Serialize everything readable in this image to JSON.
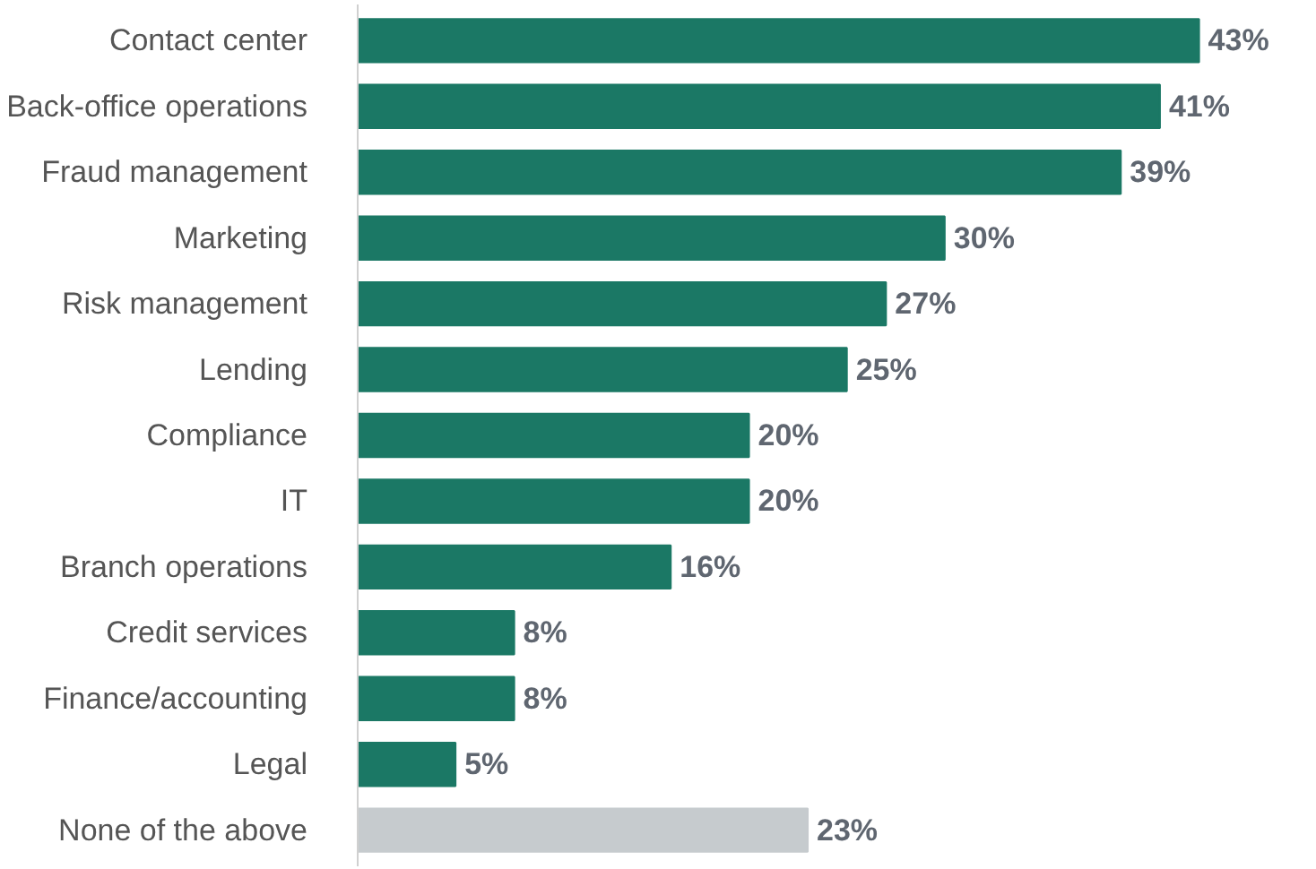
{
  "chart_data": {
    "type": "bar",
    "orientation": "horizontal",
    "categories": [
      "Contact center",
      "Back-office operations",
      "Fraud management",
      "Marketing",
      "Risk management",
      "Lending",
      "Compliance",
      "IT",
      "Branch operations",
      "Credit services",
      "Finance/accounting",
      "Legal",
      "None of the above"
    ],
    "values": [
      43,
      41,
      39,
      30,
      27,
      25,
      20,
      20,
      16,
      8,
      8,
      5,
      23
    ],
    "value_labels": [
      "43%",
      "41%",
      "39%",
      "30%",
      "27%",
      "25%",
      "20%",
      "20%",
      "16%",
      "8%",
      "8%",
      "5%",
      "23%"
    ],
    "colors": [
      "#1b7865",
      "#1b7865",
      "#1b7865",
      "#1b7865",
      "#1b7865",
      "#1b7865",
      "#1b7865",
      "#1b7865",
      "#1b7865",
      "#1b7865",
      "#1b7865",
      "#1b7865",
      "#c6cbce"
    ],
    "grid": false
  }
}
